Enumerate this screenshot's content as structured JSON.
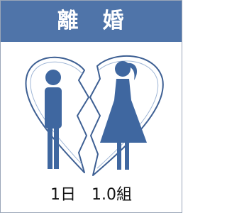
{
  "header": {
    "title": "離　婚"
  },
  "caption": "1日　1.0組"
}
